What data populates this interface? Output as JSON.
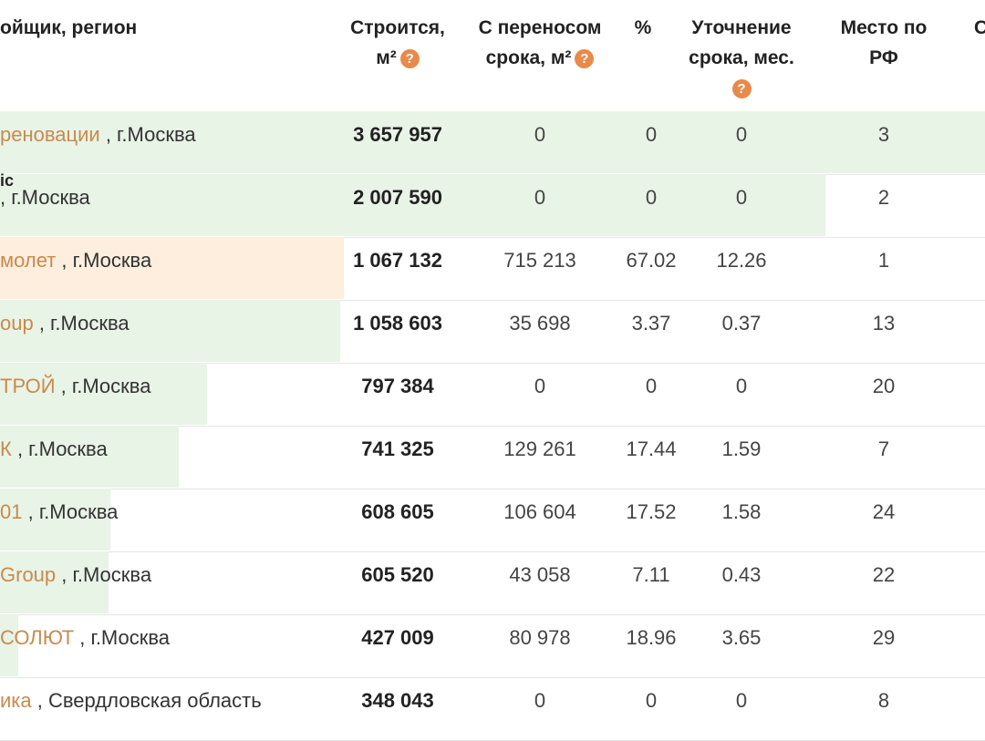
{
  "headers": {
    "developer": "ойщик, регион",
    "building_line1": "Строится,",
    "building_line2": "м²",
    "transferred_line1": "С переносом",
    "transferred_line2": "срока, м²",
    "percent": "%",
    "refinement_line1": "Уточнение",
    "refinement_line2": "срока, мес.",
    "place_line1": "Место по",
    "place_line2": "РФ",
    "next_col": "С",
    "help_glyph": "?"
  },
  "fragment": "ic",
  "rows": [
    {
      "developer": "реновации",
      "region": " , г.Москва",
      "building": "3 657 957",
      "transferred": "0",
      "percent": "0",
      "refinement": "0",
      "place": "3",
      "bar_color": "#e8f4e6",
      "bar_fraction": 1.0
    },
    {
      "developer": "",
      "region": " , г.Москва",
      "building": "2 007 590",
      "transferred": "0",
      "percent": "0",
      "refinement": "0",
      "place": "2",
      "bar_color": "#e8f4e6",
      "bar_fraction": 0.836
    },
    {
      "developer": "молет",
      "region": " , г.Москва",
      "building": "1 067 132",
      "transferred": "715 213",
      "percent": "67.02",
      "refinement": "12.26",
      "place": "1",
      "bar_color": "#fdeedd",
      "bar_fraction": 0.343
    },
    {
      "developer": "oup",
      "region": " , г.Москва",
      "building": "1 058 603",
      "transferred": "35 698",
      "percent": "3.37",
      "refinement": "0.37",
      "place": "13",
      "bar_color": "#e8f4e6",
      "bar_fraction": 0.339
    },
    {
      "developer": "ТРОЙ",
      "region": " , г.Москва",
      "building": "797 384",
      "transferred": "0",
      "percent": "0",
      "refinement": "0",
      "place": "20",
      "bar_color": "#e8f4e6",
      "bar_fraction": 0.203
    },
    {
      "developer": "К",
      "region": " , г.Москва",
      "building": "741 325",
      "transferred": "129 261",
      "percent": "17.44",
      "refinement": "1.59",
      "place": "7",
      "bar_color": "#e8f4e6",
      "bar_fraction": 0.174
    },
    {
      "developer": "01",
      "region": " , г.Москва",
      "building": "608 605",
      "transferred": "106 604",
      "percent": "17.52",
      "refinement": "1.58",
      "place": "24",
      "bar_color": "#e8f4e6",
      "bar_fraction": 0.104
    },
    {
      "developer": "Group",
      "region": " , г.Москва",
      "building": "605 520",
      "transferred": "43 058",
      "percent": "7.11",
      "refinement": "0.43",
      "place": "22",
      "bar_color": "#e8f4e6",
      "bar_fraction": 0.102
    },
    {
      "developer": "СОЛЮТ",
      "region": " , г.Москва",
      "building": "427 009",
      "transferred": "80 978",
      "percent": "18.96",
      "refinement": "3.65",
      "place": "29",
      "bar_color": "#e8f4e6",
      "bar_fraction": 0.009
    },
    {
      "developer": "ика",
      "region": " , Свердловская область",
      "building": "348 043",
      "transferred": "0",
      "percent": "0",
      "refinement": "0",
      "place": "8",
      "bar_color": "#e8f4e6",
      "bar_fraction": 0.0
    }
  ]
}
